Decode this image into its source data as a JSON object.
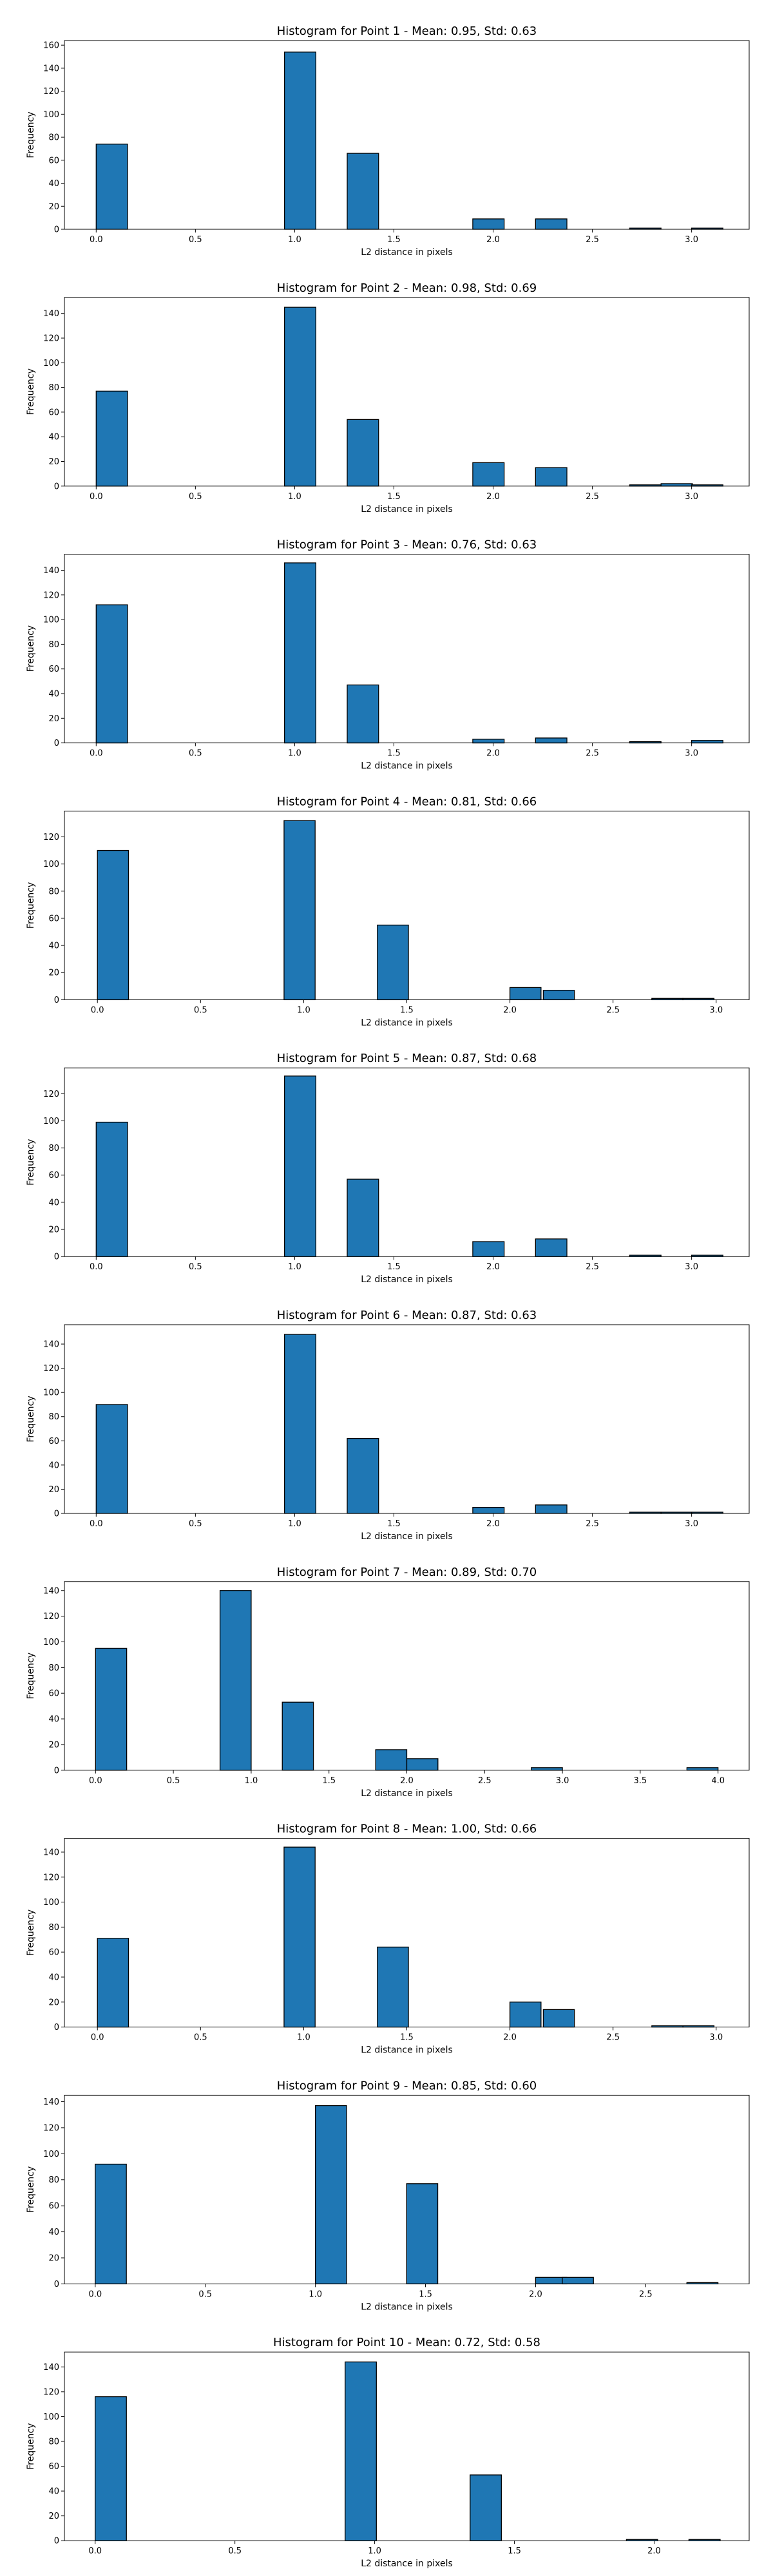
{
  "chart_data": [
    {
      "type": "bar",
      "title": "Histogram for Point 1 - Mean: 0.95, Std: 0.63",
      "xlabel": "L2 distance in pixels",
      "ylabel": "Frequency",
      "xlim": [
        -0.16,
        3.29
      ],
      "ylim": [
        0,
        164
      ],
      "xticks": [
        0.0,
        0.5,
        1.0,
        1.5,
        2.0,
        2.5,
        3.0
      ],
      "yticks": [
        0,
        20,
        40,
        60,
        80,
        100,
        120,
        140,
        160
      ],
      "bin_width": 0.1581,
      "bin_starts": [
        0.0,
        0.9487,
        1.2649,
        1.8974,
        2.2136,
        2.6879,
        2.846,
        2.9998
      ],
      "values": [
        74,
        154,
        66,
        9,
        9,
        1,
        0,
        1
      ]
    },
    {
      "type": "bar",
      "title": "Histogram for Point 2 - Mean: 0.98, Std: 0.69",
      "xlabel": "L2 distance in pixels",
      "ylabel": "Frequency",
      "xlim": [
        -0.16,
        3.29
      ],
      "ylim": [
        0,
        153
      ],
      "xticks": [
        0.0,
        0.5,
        1.0,
        1.5,
        2.0,
        2.5,
        3.0
      ],
      "yticks": [
        0,
        20,
        40,
        60,
        80,
        100,
        120,
        140
      ],
      "bin_width": 0.1581,
      "bin_starts": [
        0.0,
        0.9487,
        1.2649,
        1.8974,
        2.2136,
        2.6879,
        2.846,
        2.9998
      ],
      "values": [
        77,
        145,
        54,
        19,
        15,
        1,
        2,
        1
      ]
    },
    {
      "type": "bar",
      "title": "Histogram for Point 3 - Mean: 0.76, Std: 0.63",
      "xlabel": "L2 distance in pixels",
      "ylabel": "Frequency",
      "xlim": [
        -0.16,
        3.29
      ],
      "ylim": [
        0,
        153
      ],
      "xticks": [
        0.0,
        0.5,
        1.0,
        1.5,
        2.0,
        2.5,
        3.0
      ],
      "yticks": [
        0,
        20,
        40,
        60,
        80,
        100,
        120,
        140
      ],
      "bin_width": 0.1581,
      "bin_starts": [
        0.0,
        0.9487,
        1.2649,
        1.8974,
        2.2136,
        2.6879,
        2.9998
      ],
      "values": [
        112,
        146,
        47,
        3,
        4,
        1,
        2
      ]
    },
    {
      "type": "bar",
      "title": "Histogram for Point 4 - Mean: 0.81, Std: 0.66",
      "xlabel": "L2 distance in pixels",
      "ylabel": "Frequency",
      "xlim": [
        -0.16,
        3.16
      ],
      "ylim": [
        0,
        139
      ],
      "xticks": [
        0.0,
        0.5,
        1.0,
        1.5,
        2.0,
        2.5,
        3.0
      ],
      "yticks": [
        0,
        20,
        40,
        60,
        80,
        100,
        120
      ],
      "bin_width": 0.1508,
      "bin_starts": [
        0.0,
        0.9048,
        1.3572,
        2.0,
        2.1618,
        2.688,
        2.8388
      ],
      "values": [
        110,
        132,
        55,
        9,
        7,
        1,
        1
      ]
    },
    {
      "type": "bar",
      "title": "Histogram for Point 5 - Mean: 0.87, Std: 0.68",
      "xlabel": "L2 distance in pixels",
      "ylabel": "Frequency",
      "xlim": [
        -0.16,
        3.29
      ],
      "ylim": [
        0,
        139
      ],
      "xticks": [
        0.0,
        0.5,
        1.0,
        1.5,
        2.0,
        2.5,
        3.0
      ],
      "yticks": [
        0,
        20,
        40,
        60,
        80,
        100,
        120
      ],
      "bin_width": 0.1581,
      "bin_starts": [
        0.0,
        0.9487,
        1.2649,
        1.8974,
        2.2136,
        2.6879,
        2.9998
      ],
      "values": [
        99,
        133,
        57,
        11,
        13,
        1,
        1
      ]
    },
    {
      "type": "bar",
      "title": "Histogram for Point 6 - Mean: 0.87, Std: 0.63",
      "xlabel": "L2 distance in pixels",
      "ylabel": "Frequency",
      "xlim": [
        -0.16,
        3.29
      ],
      "ylim": [
        0,
        156
      ],
      "xticks": [
        0.0,
        0.5,
        1.0,
        1.5,
        2.0,
        2.5,
        3.0
      ],
      "yticks": [
        0,
        20,
        40,
        60,
        80,
        100,
        120,
        140
      ],
      "bin_width": 0.1581,
      "bin_starts": [
        0.0,
        0.9487,
        1.2649,
        1.8974,
        2.2136,
        2.6879,
        2.846,
        2.9998
      ],
      "values": [
        90,
        148,
        62,
        5,
        7,
        1,
        1,
        1
      ]
    },
    {
      "type": "bar",
      "title": "Histogram for Point 7 - Mean: 0.89, Std: 0.70",
      "xlabel": "L2 distance in pixels",
      "ylabel": "Frequency",
      "xlim": [
        -0.2,
        4.2
      ],
      "ylim": [
        0,
        147
      ],
      "xticks": [
        0.0,
        0.5,
        1.0,
        1.5,
        2.0,
        2.5,
        3.0,
        3.5,
        4.0
      ],
      "yticks": [
        0,
        20,
        40,
        60,
        80,
        100,
        120,
        140
      ],
      "bin_width": 0.2,
      "bin_starts": [
        0.0,
        0.8,
        1.2,
        1.8,
        2.0,
        2.8,
        3.8
      ],
      "values": [
        95,
        140,
        53,
        16,
        9,
        2,
        2
      ]
    },
    {
      "type": "bar",
      "title": "Histogram for Point 8 - Mean: 1.00, Std: 0.66",
      "xlabel": "L2 distance in pixels",
      "ylabel": "Frequency",
      "xlim": [
        -0.16,
        3.16
      ],
      "ylim": [
        0,
        151
      ],
      "xticks": [
        0.0,
        0.5,
        1.0,
        1.5,
        2.0,
        2.5,
        3.0
      ],
      "yticks": [
        0,
        20,
        40,
        60,
        80,
        100,
        120,
        140
      ],
      "bin_width": 0.1508,
      "bin_starts": [
        0.0,
        0.9048,
        1.3572,
        2.0,
        2.1618,
        2.688,
        2.8388
      ],
      "values": [
        71,
        144,
        64,
        20,
        14,
        1,
        1
      ]
    },
    {
      "type": "bar",
      "title": "Histogram for Point 9 - Mean: 0.85, Std: 0.60",
      "xlabel": "L2 distance in pixels",
      "ylabel": "Frequency",
      "xlim": [
        -0.14,
        2.97
      ],
      "ylim": [
        0,
        145
      ],
      "xticks": [
        0.0,
        0.5,
        1.0,
        1.5,
        2.0,
        2.5
      ],
      "yticks": [
        0,
        20,
        40,
        60,
        80,
        100,
        120,
        140
      ],
      "bin_width": 0.1414,
      "bin_starts": [
        0.0,
        1.0,
        1.4142,
        2.0,
        2.1213,
        2.687
      ],
      "values": [
        92,
        137,
        77,
        5,
        5,
        1
      ]
    },
    {
      "type": "bar",
      "title": "Histogram for Point 10 - Mean: 0.72, Std: 0.58",
      "xlabel": "L2 distance in pixels",
      "ylabel": "Frequency",
      "xlim": [
        -0.11,
        2.34
      ],
      "ylim": [
        0,
        152
      ],
      "xticks": [
        0.0,
        0.5,
        1.0,
        1.5,
        2.0
      ],
      "yticks": [
        0,
        20,
        40,
        60,
        80,
        100,
        120,
        140
      ],
      "bin_width": 0.1118,
      "bin_starts": [
        0.0,
        0.8944,
        1.3416,
        1.9008,
        2.1244
      ],
      "values": [
        116,
        144,
        53,
        1,
        1
      ]
    }
  ]
}
